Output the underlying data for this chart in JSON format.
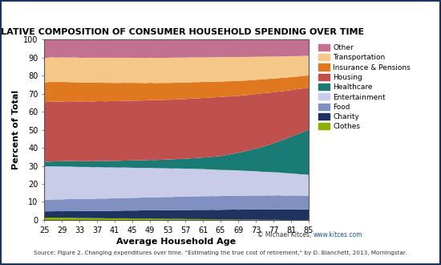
{
  "title": "RELATIVE COMPOSITION OF CONSUMER HOUSEHOLD SPENDING OVER TIME",
  "xlabel": "Average Household Age",
  "ylabel": "Percent of Total",
  "ages": [
    25,
    26,
    27,
    28,
    29,
    30,
    31,
    32,
    33,
    34,
    35,
    36,
    37,
    38,
    39,
    40,
    41,
    42,
    43,
    44,
    45,
    46,
    47,
    48,
    49,
    50,
    51,
    52,
    53,
    54,
    55,
    56,
    57,
    58,
    59,
    60,
    61,
    62,
    63,
    64,
    65,
    66,
    67,
    68,
    69,
    70,
    71,
    72,
    73,
    74,
    75,
    76,
    77,
    78,
    79,
    80,
    81,
    82,
    83,
    84,
    85
  ],
  "xticks": [
    25,
    29,
    33,
    37,
    41,
    45,
    49,
    53,
    57,
    61,
    65,
    69,
    73,
    77,
    81,
    85
  ],
  "yticks": [
    0,
    10,
    20,
    30,
    40,
    50,
    60,
    70,
    80,
    90,
    100
  ],
  "categories": [
    "Clothes",
    "Charity",
    "Food",
    "Entertainment",
    "Healthcare",
    "Housing",
    "Insurance & Pensions",
    "Transportation",
    "Other"
  ],
  "colors": [
    "#8db000",
    "#1d3461",
    "#8090c0",
    "#c8cce8",
    "#1a7a74",
    "#c0504d",
    "#e07820",
    "#f5c888",
    "#c47090"
  ],
  "source_text": "Source: Figure 2. Changing expenditures over time. \"Estimating the true cost of retirement,\" by D. Blanchett, 2013, Morningstar.",
  "credit_text": "© Michael Kitces, www.kitces.com",
  "credit_url": "www.kitces.com",
  "border_color": "#1d3461",
  "background_color": "#ffffff",
  "data": {
    "Clothes": [
      1.5,
      1.5,
      1.5,
      1.5,
      1.4,
      1.4,
      1.4,
      1.3,
      1.3,
      1.3,
      1.3,
      1.2,
      1.2,
      1.2,
      1.1,
      1.1,
      1.1,
      1.1,
      1.1,
      1.1,
      1.0,
      1.0,
      1.0,
      1.0,
      1.0,
      0.9,
      0.9,
      0.9,
      0.8,
      0.8,
      0.8,
      0.8,
      0.7,
      0.7,
      0.7,
      0.7,
      0.6,
      0.6,
      0.6,
      0.5,
      0.5,
      0.5,
      0.5,
      0.5,
      0.4,
      0.4,
      0.4,
      0.4,
      0.4,
      0.3,
      0.3,
      0.3,
      0.3,
      0.3,
      0.2,
      0.2,
      0.2,
      0.2,
      0.2,
      0.2,
      0.2
    ],
    "Charity": [
      3.5,
      3.5,
      3.5,
      3.6,
      3.6,
      3.7,
      3.7,
      3.8,
      3.8,
      3.8,
      3.9,
      3.9,
      4.0,
      4.0,
      4.1,
      4.1,
      4.2,
      4.2,
      4.3,
      4.3,
      4.4,
      4.4,
      4.5,
      4.5,
      4.6,
      4.6,
      4.7,
      4.7,
      4.8,
      4.8,
      4.9,
      4.9,
      5.0,
      5.0,
      5.1,
      5.1,
      5.2,
      5.2,
      5.3,
      5.3,
      5.4,
      5.5,
      5.5,
      5.6,
      5.6,
      5.7,
      5.7,
      5.8,
      5.8,
      5.9,
      5.9,
      6.0,
      6.0,
      6.1,
      6.1,
      6.2,
      6.2,
      6.3,
      6.3,
      6.4,
      6.4
    ],
    "Food": [
      6.5,
      6.5,
      6.5,
      6.5,
      6.5,
      6.6,
      6.6,
      6.6,
      6.6,
      6.7,
      6.7,
      6.7,
      6.8,
      6.8,
      6.8,
      6.9,
      6.9,
      6.9,
      7.0,
      7.0,
      7.0,
      7.1,
      7.1,
      7.1,
      7.2,
      7.2,
      7.2,
      7.3,
      7.3,
      7.3,
      7.4,
      7.4,
      7.4,
      7.5,
      7.5,
      7.5,
      7.6,
      7.6,
      7.6,
      7.7,
      7.7,
      7.8,
      7.8,
      7.8,
      7.9,
      7.9,
      7.9,
      8.0,
      8.0,
      8.0,
      8.1,
      8.1,
      8.1,
      8.2,
      8.2,
      8.2,
      8.3,
      8.3,
      8.3,
      8.4,
      8.4
    ],
    "Entertainment": [
      18.5,
      18.3,
      18.3,
      18.2,
      18.2,
      18.0,
      18.0,
      17.8,
      17.8,
      17.7,
      17.6,
      17.5,
      17.4,
      17.3,
      17.2,
      17.1,
      17.0,
      16.9,
      16.8,
      16.7,
      16.6,
      16.5,
      16.4,
      16.3,
      16.2,
      16.1,
      16.0,
      15.9,
      15.8,
      15.7,
      15.6,
      15.5,
      15.4,
      15.3,
      15.2,
      15.1,
      15.0,
      14.9,
      14.8,
      14.7,
      14.6,
      14.5,
      14.4,
      14.3,
      14.2,
      14.1,
      14.0,
      13.9,
      13.8,
      13.7,
      13.6,
      13.5,
      13.4,
      13.3,
      13.2,
      13.1,
      13.0,
      12.9,
      12.8,
      12.7,
      12.6
    ],
    "Healthcare": [
      2.5,
      2.6,
      2.7,
      2.8,
      2.9,
      3.0,
      3.0,
      3.1,
      3.1,
      3.2,
      3.2,
      3.3,
      3.4,
      3.4,
      3.5,
      3.5,
      3.6,
      3.7,
      3.8,
      3.9,
      4.0,
      4.1,
      4.2,
      4.3,
      4.4,
      4.5,
      4.6,
      4.7,
      4.9,
      5.0,
      5.2,
      5.3,
      5.5,
      5.7,
      5.9,
      6.1,
      6.4,
      6.7,
      7.0,
      7.4,
      7.8,
      8.3,
      8.8,
      9.4,
      10.0,
      10.7,
      11.4,
      12.2,
      13.0,
      13.9,
      14.8,
      15.8,
      16.8,
      18.0,
      19.2,
      20.5,
      21.8,
      23.2,
      24.6,
      26.0,
      27.5
    ],
    "Housing": [
      33.0,
      33.0,
      33.0,
      33.0,
      33.0,
      33.0,
      33.0,
      33.0,
      33.0,
      33.0,
      33.0,
      33.0,
      33.0,
      33.0,
      33.0,
      33.0,
      33.0,
      33.0,
      33.0,
      33.0,
      33.0,
      33.0,
      33.0,
      33.0,
      33.0,
      33.0,
      33.0,
      33.0,
      33.0,
      33.0,
      33.0,
      33.0,
      33.0,
      33.0,
      33.0,
      33.0,
      33.0,
      33.0,
      33.0,
      33.0,
      33.0,
      33.0,
      32.5,
      32.5,
      32.0,
      32.0,
      31.5,
      31.5,
      31.0,
      31.0,
      30.5,
      30.0,
      29.5,
      29.0,
      28.5,
      28.0,
      27.5,
      27.0,
      26.5,
      26.0,
      25.5
    ],
    "Insurance & Pensions": [
      11.0,
      11.0,
      10.9,
      10.8,
      10.8,
      10.7,
      10.6,
      10.6,
      10.5,
      10.5,
      10.4,
      10.4,
      10.3,
      10.2,
      10.2,
      10.1,
      10.1,
      10.0,
      9.9,
      9.9,
      9.8,
      9.8,
      9.7,
      9.6,
      9.6,
      9.5,
      9.5,
      9.4,
      9.3,
      9.3,
      9.2,
      9.2,
      9.1,
      9.0,
      9.0,
      8.9,
      8.9,
      8.8,
      8.7,
      8.7,
      8.6,
      8.6,
      8.5,
      8.4,
      8.4,
      8.3,
      8.3,
      8.2,
      8.1,
      8.1,
      8.0,
      8.0,
      7.9,
      7.8,
      7.8,
      7.7,
      7.7,
      7.6,
      7.5,
      7.5,
      7.4
    ],
    "Transportation": [
      13.5,
      13.5,
      13.6,
      13.5,
      13.6,
      13.5,
      13.6,
      13.7,
      13.6,
      13.6,
      13.7,
      13.8,
      13.7,
      13.8,
      13.9,
      13.8,
      13.9,
      13.9,
      13.8,
      13.9,
      13.8,
      13.8,
      13.9,
      13.9,
      13.8,
      13.9,
      13.8,
      13.8,
      13.9,
      13.9,
      13.8,
      13.7,
      13.8,
      13.8,
      13.7,
      13.7,
      13.6,
      13.7,
      13.6,
      13.6,
      13.7,
      13.6,
      13.6,
      13.5,
      13.5,
      13.4,
      13.3,
      13.2,
      13.1,
      13.0,
      12.9,
      12.8,
      12.7,
      12.6,
      12.5,
      12.4,
      12.3,
      12.2,
      12.1,
      12.0,
      11.9
    ],
    "Other": [
      10.0,
      9.6,
      9.5,
      9.6,
      9.5,
      9.6,
      9.6,
      9.5,
      9.8,
      9.7,
      9.7,
      9.7,
      9.7,
      9.7,
      9.7,
      9.7,
      9.7,
      9.7,
      9.7,
      9.7,
      9.7,
      9.8,
      9.7,
      9.8,
      9.7,
      9.8,
      9.8,
      9.8,
      9.7,
      9.7,
      9.6,
      9.7,
      9.6,
      9.5,
      9.5,
      9.5,
      9.5,
      9.5,
      9.5,
      9.5,
      9.5,
      9.5,
      9.5,
      9.5,
      9.5,
      9.5,
      9.5,
      9.5,
      9.5,
      9.5,
      9.5,
      9.5,
      9.5,
      9.5,
      9.5,
      9.5,
      9.5,
      9.5,
      9.5,
      9.5,
      9.5
    ]
  }
}
